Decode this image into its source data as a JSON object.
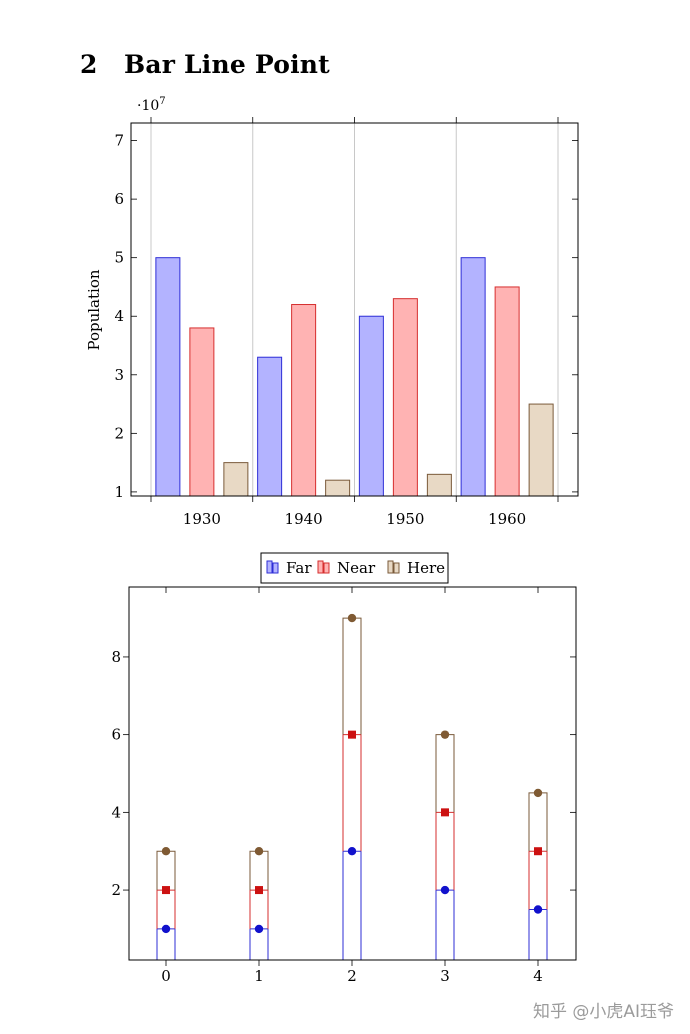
{
  "section": {
    "number": "2",
    "title": "Bar Line Point"
  },
  "watermark": "知乎 @小虎AI珏爷",
  "colors": {
    "far_fill": "#b3b3ff",
    "far_stroke": "#2e2ed6",
    "near_fill": "#ffb3b3",
    "near_stroke": "#d62e2e",
    "here_fill": "#e8d9c5",
    "here_stroke": "#7a5a3a",
    "blue_mark": "#1111cc",
    "red_mark": "#cc1111",
    "brown_mark": "#7f5a33"
  },
  "chart_data": [
    {
      "type": "bar",
      "ylabel": "Population",
      "scale_label": "·10",
      "scale_exp": "7",
      "categories": [
        "1930",
        "1940",
        "1950",
        "1960"
      ],
      "yticks": [
        "1",
        "2",
        "3",
        "4",
        "5",
        "6",
        "7"
      ],
      "ylim": [
        0.93,
        7.3
      ],
      "grid": "x-major",
      "series": [
        {
          "name": "Far",
          "values": [
            5.0,
            3.3,
            4.0,
            5.0
          ]
        },
        {
          "name": "Near",
          "values": [
            3.8,
            4.2,
            4.3,
            4.5
          ]
        },
        {
          "name": "Here",
          "values": [
            1.5,
            1.2,
            1.3,
            2.5
          ]
        }
      ]
    },
    {
      "type": "stacked-bar-line-point",
      "legend": [
        "Far",
        "Near",
        "Here"
      ],
      "legend_position": "top-center",
      "x": [
        "0",
        "1",
        "2",
        "3",
        "4"
      ],
      "yticks": [
        "2",
        "4",
        "6",
        "8"
      ],
      "ylim": [
        0.2,
        9.8
      ],
      "series": [
        {
          "name": "Far",
          "values": [
            1,
            1,
            3,
            2,
            1.5
          ]
        },
        {
          "name": "Near",
          "values": [
            2,
            2,
            6,
            4,
            3
          ]
        },
        {
          "name": "Here",
          "values": [
            3,
            3,
            9,
            6,
            4.5
          ]
        }
      ]
    }
  ]
}
